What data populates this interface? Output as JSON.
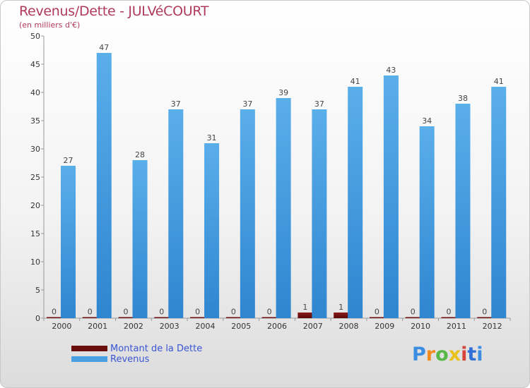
{
  "header": {
    "title": "Revenus/Dette - JULVéCOURT",
    "subtitle": "(en milliers d'€)"
  },
  "legend": {
    "items": [
      {
        "label": "Montant de la Dette",
        "color": "#6b0d0d"
      },
      {
        "label": "Revenus",
        "color": "#4a9fe0"
      }
    ]
  },
  "logo": {
    "text": "Proxiti",
    "colors": [
      "#3a8de0",
      "#f28c1e",
      "#58b847",
      "#e8c21a",
      "#d6443a",
      "#2f6fd6"
    ]
  },
  "chart_data": {
    "type": "bar",
    "title": "Revenus/Dette - JULVéCOURT",
    "subtitle": "(en milliers d'€)",
    "xlabel": "",
    "ylabel": "",
    "ylim": [
      0,
      50
    ],
    "yticks": [
      0,
      5,
      10,
      15,
      20,
      25,
      30,
      35,
      40,
      45,
      50
    ],
    "grid": false,
    "legend_position": "bottom-left",
    "categories": [
      "2000",
      "2001",
      "2002",
      "2003",
      "2004",
      "2005",
      "2006",
      "2007",
      "2008",
      "2009",
      "2010",
      "2011",
      "2012"
    ],
    "series": [
      {
        "name": "Montant de la Dette",
        "color": "#6b0d0d",
        "values": [
          0,
          0,
          0,
          0,
          0,
          0,
          0,
          1,
          1,
          0,
          0,
          0,
          0
        ]
      },
      {
        "name": "Revenus",
        "color": "#4a9fe0",
        "values": [
          27,
          47,
          28,
          37,
          31,
          37,
          39,
          37,
          41,
          43,
          34,
          38,
          41
        ]
      }
    ]
  }
}
